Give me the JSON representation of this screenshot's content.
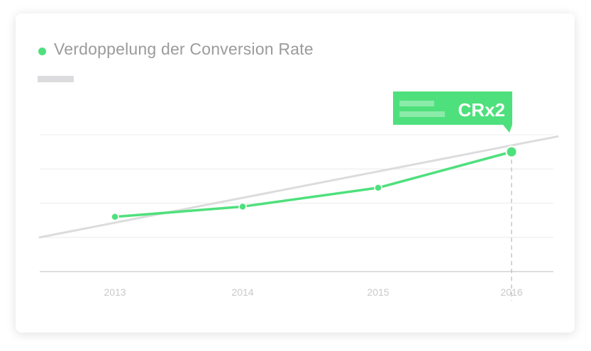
{
  "colors": {
    "accent": "#4ee07c",
    "trend": "#dcdcdc",
    "grid": "#ececec",
    "axis": "#bdbdbd",
    "tick_text": "#c9c9c9",
    "title_text": "#9b9b9b"
  },
  "card": {
    "legend_icon": "green-dot",
    "title": "Verdoppelung der Conversion Rate"
  },
  "badge": {
    "label": "CRx2"
  },
  "chart_data": {
    "type": "line",
    "title": "Verdoppelung der Conversion Rate",
    "xlabel": "",
    "ylabel": "",
    "categories": [
      "2013",
      "2014",
      "2015",
      "2016"
    ],
    "series": [
      {
        "name": "Verdoppelung der Conversion Rate",
        "color": "#4ee07c",
        "values": [
          1.6,
          1.9,
          2.45,
          3.5
        ]
      }
    ],
    "trend_line": {
      "y_start": 1.0,
      "y_end": 3.95
    },
    "ylim": [
      0,
      4
    ],
    "y_gridlines": [
      1,
      2,
      3,
      4
    ],
    "grid": true,
    "legend": "top-left",
    "annotation": {
      "category": "2016",
      "label": "CRx2"
    }
  }
}
